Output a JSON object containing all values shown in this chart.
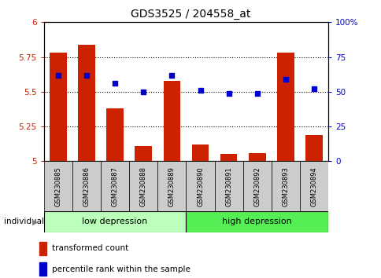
{
  "title": "GDS3525 / 204558_at",
  "samples": [
    "GSM230885",
    "GSM230886",
    "GSM230887",
    "GSM230888",
    "GSM230889",
    "GSM230890",
    "GSM230891",
    "GSM230892",
    "GSM230893",
    "GSM230894"
  ],
  "transformed_count": [
    5.78,
    5.84,
    5.38,
    5.11,
    5.58,
    5.12,
    5.05,
    5.06,
    5.78,
    5.19
  ],
  "percentile_rank": [
    62,
    62,
    56,
    50,
    62,
    51,
    49,
    49,
    59,
    52
  ],
  "ylim_left": [
    5.0,
    6.0
  ],
  "ylim_right": [
    0,
    100
  ],
  "yticks_left": [
    5.0,
    5.25,
    5.5,
    5.75,
    6.0
  ],
  "yticks_right": [
    0,
    25,
    50,
    75,
    100
  ],
  "ytick_labels_left": [
    "5",
    "5.25",
    "5.5",
    "5.75",
    "6"
  ],
  "ytick_labels_right": [
    "0",
    "25",
    "50",
    "75",
    "100%"
  ],
  "bar_color": "#cc2200",
  "dot_color": "#0000cc",
  "group_low_label": "low depression",
  "group_low_color": "#bbffbb",
  "group_high_label": "high depression",
  "group_high_color": "#55ee55",
  "legend_bar_label": "transformed count",
  "legend_dot_label": "percentile rank within the sample",
  "group_label": "individual",
  "sample_box_color": "#cccccc"
}
